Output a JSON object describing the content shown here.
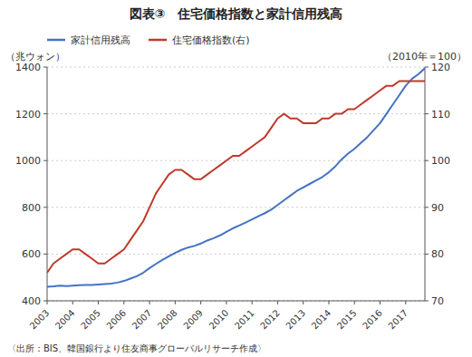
{
  "chart_data": {
    "type": "line",
    "title": "図表③　住宅価格指数と家計信用残高",
    "annotations": [
      "〈出所：BIS、韓国銀行より住友商事グローバルリサーチ作成〉"
    ],
    "ylabel": "（兆ウォン）",
    "y2label": "（2010年＝100）",
    "x": [
      2003.0,
      2003.25,
      2003.5,
      2003.75,
      2004.0,
      2004.25,
      2004.5,
      2004.75,
      2005.0,
      2005.25,
      2005.5,
      2005.75,
      2006.0,
      2006.25,
      2006.5,
      2006.75,
      2007.0,
      2007.25,
      2007.5,
      2007.75,
      2008.0,
      2008.25,
      2008.5,
      2008.75,
      2009.0,
      2009.25,
      2009.5,
      2009.75,
      2010.0,
      2010.25,
      2010.5,
      2010.75,
      2011.0,
      2011.25,
      2011.5,
      2011.75,
      2012.0,
      2012.25,
      2012.5,
      2012.75,
      2013.0,
      2013.25,
      2013.5,
      2013.75,
      2014.0,
      2014.25,
      2014.5,
      2014.75,
      2015.0,
      2015.25,
      2015.5,
      2015.75,
      2016.0,
      2016.25,
      2016.5,
      2016.75,
      2017.0,
      2017.25,
      2017.5,
      2017.75
    ],
    "series": [
      {
        "name": "家計信用残高",
        "color": "#4472C4",
        "values": [
          460,
          462,
          465,
          463,
          465,
          467,
          468,
          468,
          470,
          472,
          474,
          478,
          485,
          495,
          505,
          520,
          540,
          558,
          575,
          590,
          605,
          618,
          628,
          635,
          645,
          658,
          668,
          680,
          695,
          710,
          722,
          735,
          748,
          762,
          775,
          790,
          810,
          830,
          850,
          870,
          885,
          900,
          915,
          930,
          950,
          975,
          1005,
          1030,
          1050,
          1075,
          1100,
          1130,
          1160,
          1200,
          1240,
          1280,
          1320,
          1350,
          1370,
          1395
        ]
      },
      {
        "name": "住宅価格指数(右)",
        "color": "#C0392B",
        "axis": "y2",
        "values": [
          76,
          78,
          79,
          80,
          81,
          81,
          80,
          79,
          78,
          78,
          79,
          80,
          81,
          83,
          85,
          87,
          90,
          93,
          95,
          97,
          98,
          98,
          97,
          96,
          96,
          97,
          98,
          99,
          100,
          101,
          101,
          102,
          103,
          104,
          105,
          107,
          109,
          110,
          109,
          109,
          108,
          108,
          108,
          109,
          109,
          110,
          110,
          111,
          111,
          112,
          113,
          114,
          115,
          116,
          116,
          117,
          117,
          117,
          117,
          117
        ]
      }
    ],
    "xlim": [
      2003,
      2017.75
    ],
    "xticks": [
      2003,
      2004,
      2005,
      2006,
      2007,
      2008,
      2009,
      2010,
      2011,
      2012,
      2013,
      2014,
      2015,
      2016,
      2017
    ],
    "ylim": [
      400,
      1400
    ],
    "yticks": [
      400,
      600,
      800,
      1000,
      1200,
      1400
    ],
    "y2lim": [
      70,
      120
    ],
    "y2ticks": [
      70,
      80,
      90,
      100,
      110,
      120
    ],
    "grid": true,
    "legend": "upper left"
  }
}
